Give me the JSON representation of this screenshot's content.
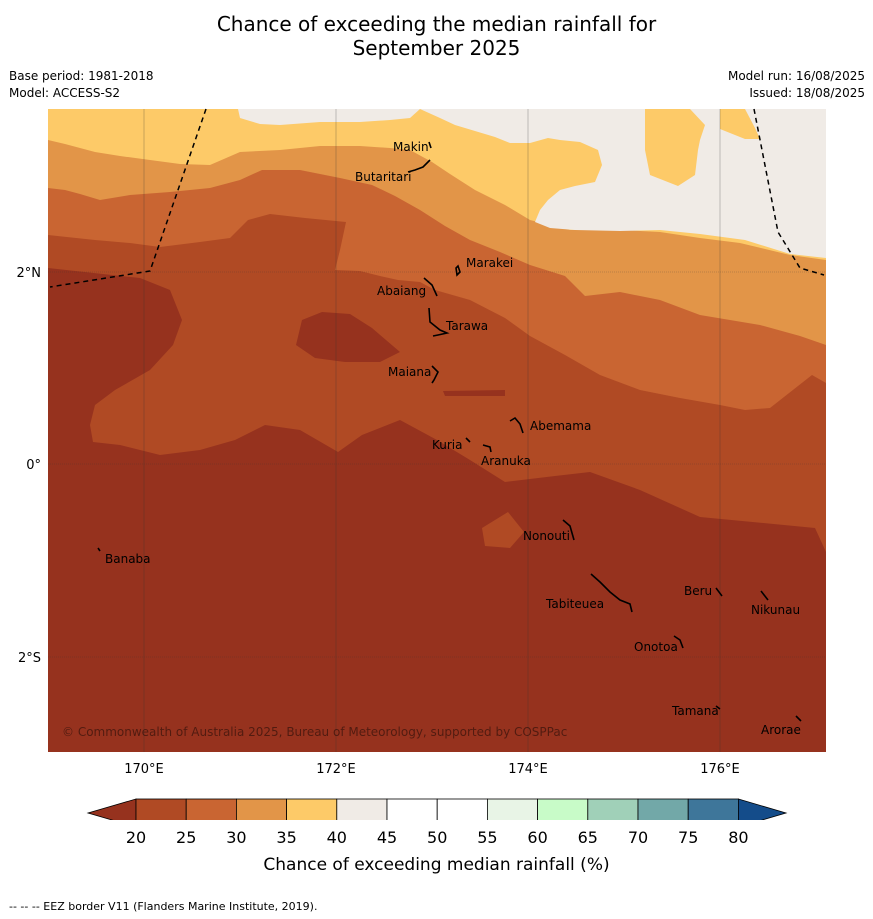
{
  "header": {
    "title_line1": "Chance of exceeding the median rainfall for",
    "title_line2": "September 2025",
    "base_period": "Base period: 1981-2018",
    "model": "Model: ACCESS-S2",
    "model_run": "Model run: 16/08/2025",
    "issued": "Issued: 18/08/2025"
  },
  "map": {
    "lon_ticks": [
      "170°E",
      "172°E",
      "174°E",
      "176°E"
    ],
    "lat_ticks": [
      "2°N",
      "0°",
      "2°S"
    ],
    "places": {
      "makin": "Makin",
      "butaritari": "Butaritari",
      "marakei": "Marakei",
      "abaiang": "Abaiang",
      "tarawa": "Tarawa",
      "maiana": "Maiana",
      "abemama": "Abemama",
      "kuria": "Kuria",
      "aranuka": "Aranuka",
      "nonouti": "Nonouti",
      "banaba": "Banaba",
      "beru": "Beru",
      "nikunau": "Nikunau",
      "tabiteuea": "Tabiteuea",
      "onotoa": "Onotoa",
      "tamana": "Tamana",
      "arorae": "Arorae"
    },
    "copyright": "© Commonwealth of Australia 2025, Bureau of Meteorology, supported by COSPPac"
  },
  "colorbar": {
    "ticks": [
      "20",
      "25",
      "30",
      "35",
      "40",
      "45",
      "50",
      "55",
      "60",
      "65",
      "70",
      "75",
      "80"
    ],
    "colors": {
      "below20": "#96321e",
      "c20_25": "#b04a24",
      "c25_30": "#c96532",
      "c30_35": "#e29548",
      "c35_40": "#fdca68",
      "c40_45": "#f0ebe6",
      "c45_50": "#ffffff",
      "c50_55": "#ffffff",
      "c55_60": "#e8f4e6",
      "c60_65": "#c8fbc8",
      "c65_70": "#a0d0b8",
      "c70_75": "#72a8a8",
      "c75_80": "#3e769a",
      "above80": "#144c8a"
    },
    "label": "Chance of exceeding median rainfall (%)"
  },
  "footer": {
    "legend": "--  --  -- EEZ border V11 (Flanders Marine Institute, 2019)."
  }
}
